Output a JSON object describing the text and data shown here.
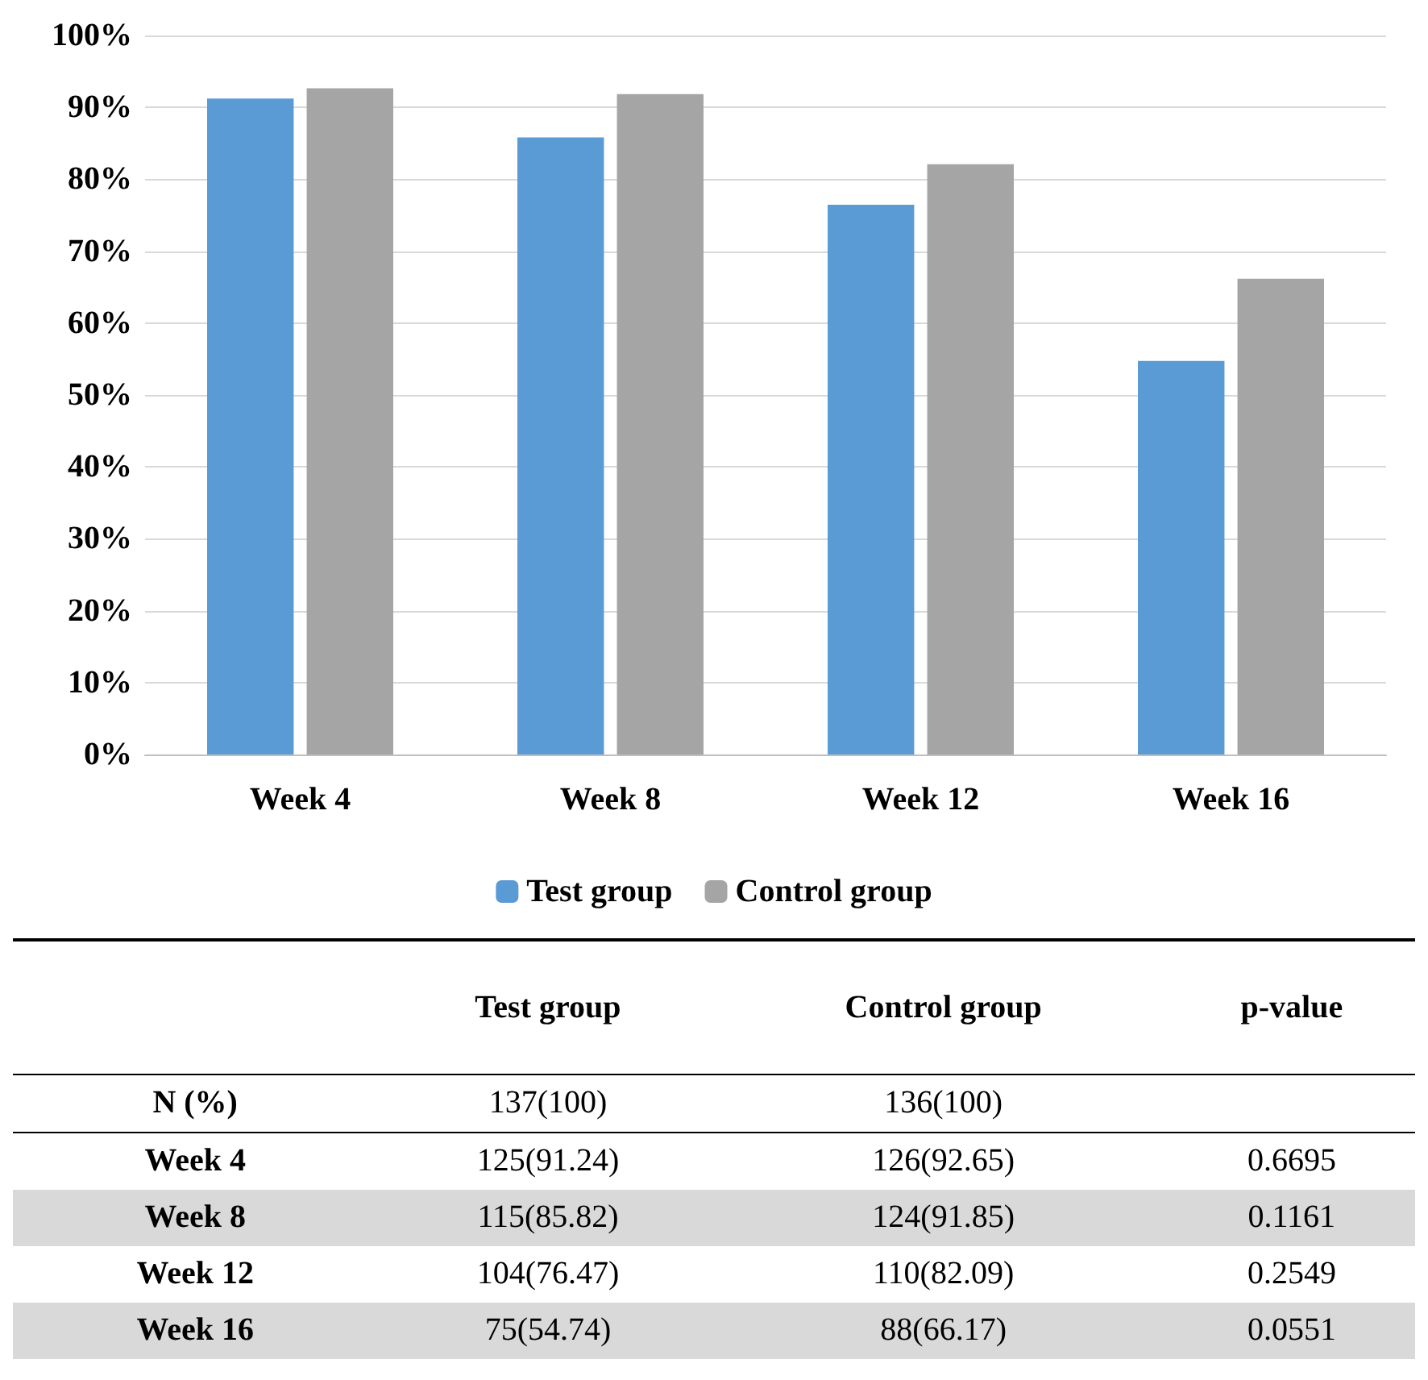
{
  "chart_data": {
    "type": "bar",
    "categories": [
      "Week 4",
      "Week 8",
      "Week 12",
      "Week 16"
    ],
    "series": [
      {
        "name": "Test group",
        "color": "#5b9bd5",
        "values": [
          91.24,
          85.82,
          76.47,
          54.74
        ]
      },
      {
        "name": "Control group",
        "color": "#a5a5a5",
        "values": [
          92.65,
          91.85,
          82.09,
          66.17
        ]
      }
    ],
    "ylim": [
      0,
      100
    ],
    "yticks": [
      {
        "value": 0,
        "label": "0%"
      },
      {
        "value": 10,
        "label": "10%"
      },
      {
        "value": 20,
        "label": "20%"
      },
      {
        "value": 30,
        "label": "30%"
      },
      {
        "value": 40,
        "label": "40%"
      },
      {
        "value": 50,
        "label": "50%"
      },
      {
        "value": 60,
        "label": "60%"
      },
      {
        "value": 70,
        "label": "70%"
      },
      {
        "value": 80,
        "label": "80%"
      },
      {
        "value": 90,
        "label": "90%"
      },
      {
        "value": 100,
        "label": "100%"
      }
    ],
    "grid": "y",
    "legend": "bottom",
    "annotations": [
      "p-value",
      "N (%)",
      "137(100)",
      "136(100)",
      "125(91.24)",
      "126(92.65)",
      "0.6695",
      "115(85.82)",
      "124(91.85)",
      "0.1161",
      "104(76.47)",
      "110(82.09)",
      "0.2549",
      "75(54.74)",
      "88(66.17)",
      "0.0551"
    ]
  }
}
